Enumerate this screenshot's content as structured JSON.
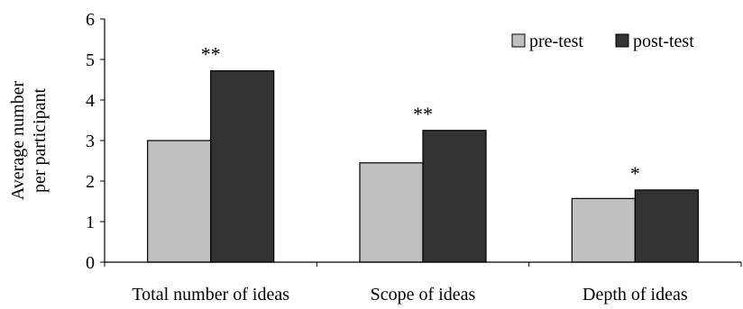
{
  "chart_data": {
    "type": "bar",
    "title": "",
    "xlabel": "",
    "ylabel_lines": [
      "Average number",
      "per participant"
    ],
    "ylim": [
      0,
      6
    ],
    "yticks": [
      0,
      1,
      2,
      3,
      4,
      5,
      6
    ],
    "grid": false,
    "legend_position": "top-right",
    "categories": [
      "Total number of ideas",
      "Scope of ideas",
      "Depth of ideas"
    ],
    "series": [
      {
        "name": "pre-test",
        "color": "#c0c0c0",
        "values": [
          3.0,
          2.45,
          1.57
        ]
      },
      {
        "name": "post-test",
        "color": "#333333",
        "values": [
          4.72,
          3.25,
          1.78
        ]
      }
    ],
    "annotations": [
      "**",
      "**",
      "*"
    ]
  }
}
